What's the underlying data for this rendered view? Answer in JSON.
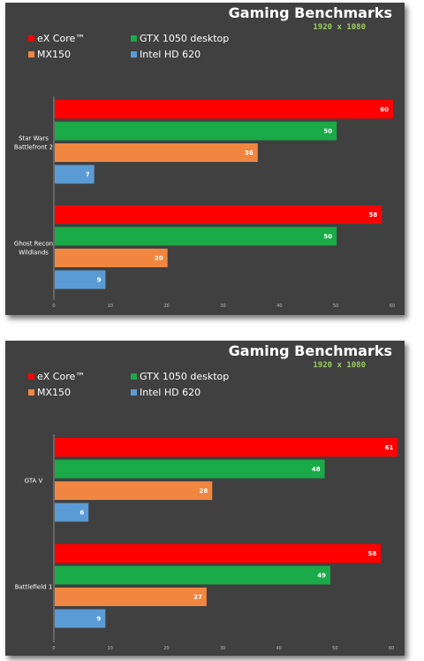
{
  "colors": {
    "ex_core": "#ff0000",
    "gtx_1050": "#1aaa48",
    "mx150": "#f08640",
    "intel_hd": "#5b9bd5"
  },
  "chart_data": [
    {
      "type": "bar",
      "orientation": "horizontal",
      "title": "Gaming Benchmarks",
      "subtitle": "1920 x 1080",
      "legend": "top-left",
      "xlim": [
        0,
        60
      ],
      "x_ticks": [
        0,
        10,
        20,
        30,
        40,
        50,
        60
      ],
      "grid": false,
      "categories": [
        "Star Wars Battlefront 2",
        "Ghost Recon Wildlands"
      ],
      "category_label_lines": [
        [
          "Star Wars",
          "Battlefront 2"
        ],
        [
          "Ghost Recon",
          "Wildlands"
        ]
      ],
      "series": [
        {
          "name": "eX Core™",
          "color": "#ff0000",
          "values": [
            60,
            58
          ]
        },
        {
          "name": "GTX 1050 desktop",
          "color": "#1aaa48",
          "values": [
            50,
            50
          ]
        },
        {
          "name": "MX150",
          "color": "#f08640",
          "values": [
            36,
            20
          ]
        },
        {
          "name": "Intel HD 620",
          "color": "#5b9bd5",
          "values": [
            7,
            9
          ]
        }
      ]
    },
    {
      "type": "bar",
      "orientation": "horizontal",
      "title": "Gaming Benchmarks",
      "subtitle": "1920 x 1080",
      "legend": "top-left",
      "xlim": [
        0,
        60
      ],
      "x_ticks": [
        0,
        10,
        20,
        30,
        40,
        50,
        60
      ],
      "grid": false,
      "categories": [
        "GTA V",
        "Battlefield 1"
      ],
      "category_label_lines": [
        [
          "GTA V"
        ],
        [
          "Battlefield 1"
        ]
      ],
      "series": [
        {
          "name": "eX Core™",
          "color": "#ff0000",
          "values": [
            61,
            58
          ]
        },
        {
          "name": "GTX 1050 desktop",
          "color": "#1aaa48",
          "values": [
            48,
            49
          ]
        },
        {
          "name": "MX150",
          "color": "#f08640",
          "values": [
            28,
            27
          ]
        },
        {
          "name": "Intel HD 620",
          "color": "#5b9bd5",
          "values": [
            6,
            9
          ]
        }
      ]
    }
  ]
}
